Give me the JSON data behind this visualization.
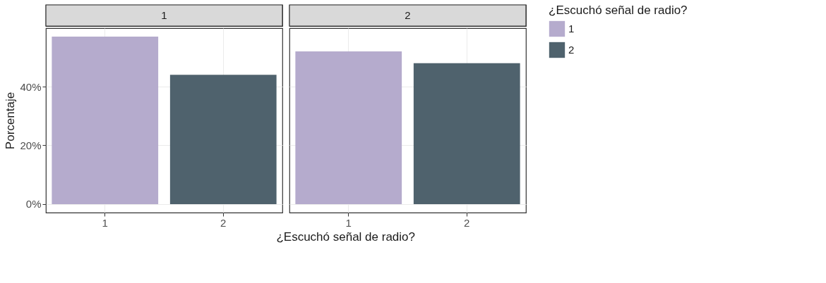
{
  "chart_data": [
    {
      "type": "bar",
      "title": "1",
      "categories": [
        "1",
        "2"
      ],
      "ylabel": "Porcentaje",
      "xlabel": "¿Escuchó señal de radio?",
      "legend_title": "¿Escuchó señal de radio?",
      "legend": "right",
      "grid": true,
      "ylim": [
        -2.9,
        59.9
      ],
      "yticks": [
        {
          "value": 0,
          "label": "0%"
        },
        {
          "value": 20,
          "label": "20%"
        },
        {
          "value": 40,
          "label": "40%"
        }
      ],
      "series": [
        {
          "name": "1",
          "color": "#b5abcd",
          "values": [
            57,
            null
          ]
        },
        {
          "name": "2",
          "color": "#4f626d",
          "values": [
            null,
            44
          ]
        }
      ]
    },
    {
      "type": "bar",
      "title": "2",
      "categories": [
        "1",
        "2"
      ],
      "grid": true,
      "tick_labels": "x",
      "ylim": [
        -2.9,
        59.9
      ],
      "yticks": [
        0,
        20,
        40
      ],
      "series": [
        {
          "color": "#b5abcd",
          "values": [
            52,
            null
          ]
        },
        {
          "color": "#4f626d",
          "values": [
            null,
            48
          ]
        }
      ]
    }
  ]
}
